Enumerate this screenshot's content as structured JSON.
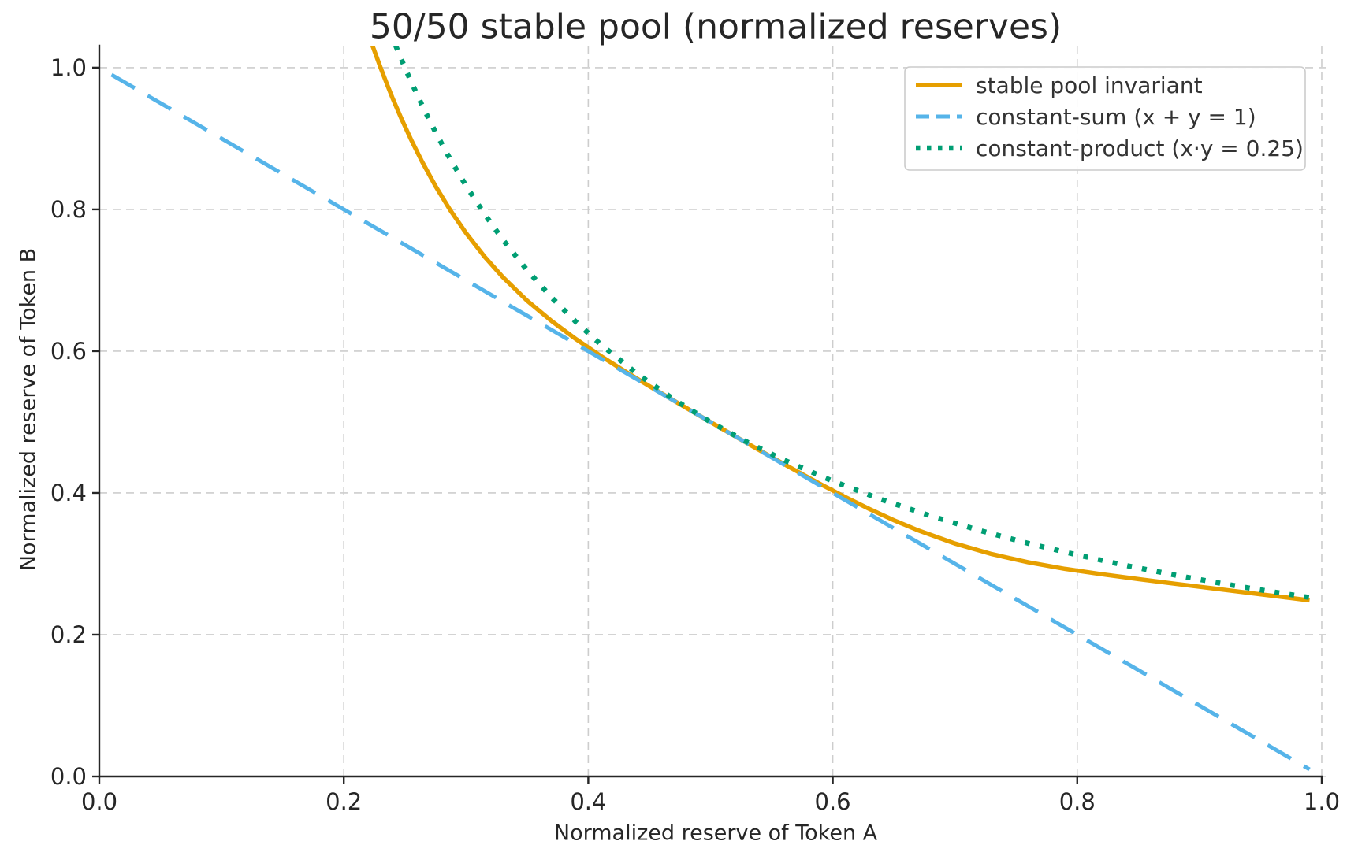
{
  "chart_data": {
    "type": "line",
    "title": "50/50 stable pool (normalized reserves)",
    "xlabel": "Normalized reserve of Token A",
    "ylabel": "Normalized reserve of Token B",
    "xlim": [
      0.0,
      1.0084
    ],
    "ylim": [
      0.0,
      1.031
    ],
    "grid": true,
    "grid_style": "dashed",
    "legend_position": "upper right",
    "xticks": {
      "values": [
        0.0,
        0.2,
        0.4,
        0.6,
        0.8,
        1.0
      ],
      "labels": [
        "0.0",
        "0.2",
        "0.4",
        "0.6",
        "0.8",
        "1.0"
      ]
    },
    "yticks": {
      "values": [
        0.0,
        0.2,
        0.4,
        0.6,
        0.8,
        1.0
      ],
      "labels": [
        "0.0",
        "0.2",
        "0.4",
        "0.6",
        "0.8",
        "1.0"
      ]
    },
    "colors": {
      "grid": "#cdcdcd",
      "spine": "#262626",
      "text": "#262626",
      "legend_border": "#cccccc",
      "background": "#ffffff"
    },
    "series": [
      {
        "name": "stable pool invariant",
        "color": "#E69F00",
        "style": "solid",
        "points": [
          [
            0.2235,
            1.031
          ],
          [
            0.227,
            1.0144
          ],
          [
            0.23,
            1.0005
          ],
          [
            0.235,
            0.9781
          ],
          [
            0.24,
            0.9567
          ],
          [
            0.247,
            0.9286
          ],
          [
            0.255,
            0.8986
          ],
          [
            0.264,
            0.8675
          ],
          [
            0.275,
            0.833
          ],
          [
            0.287,
            0.7992
          ],
          [
            0.3,
            0.7667
          ],
          [
            0.315,
            0.7336
          ],
          [
            0.33,
            0.7047
          ],
          [
            0.35,
            0.6713
          ],
          [
            0.37,
            0.6425
          ],
          [
            0.39,
            0.6169
          ],
          [
            0.41,
            0.5935
          ],
          [
            0.43,
            0.5716
          ],
          [
            0.45,
            0.5506
          ],
          [
            0.47,
            0.5302
          ],
          [
            0.5,
            0.5
          ],
          [
            0.53,
            0.4701
          ],
          [
            0.55,
            0.4505
          ],
          [
            0.57,
            0.4312
          ],
          [
            0.59,
            0.4124
          ],
          [
            0.61,
            0.3944
          ],
          [
            0.63,
            0.3773
          ],
          [
            0.65,
            0.3615
          ],
          [
            0.67,
            0.3471
          ],
          [
            0.7,
            0.3286
          ],
          [
            0.73,
            0.3137
          ],
          [
            0.76,
            0.3021
          ],
          [
            0.79,
            0.2929
          ],
          [
            0.82,
            0.2853
          ],
          [
            0.85,
            0.2784
          ],
          [
            0.88,
            0.2719
          ],
          [
            0.91,
            0.2655
          ],
          [
            0.94,
            0.2591
          ],
          [
            0.97,
            0.2527
          ],
          [
            0.99,
            0.2484
          ]
        ]
      },
      {
        "name": "constant-sum (x + y = 1)",
        "color": "#56B4E9",
        "style": "dashed",
        "points": [
          [
            0.01,
            0.99
          ],
          [
            0.99,
            0.01
          ]
        ]
      },
      {
        "name": "constant-product (x·y = 0.25)",
        "color": "#009E73",
        "style": "dotted",
        "points": [
          [
            0.2425,
            1.031
          ],
          [
            0.245,
            1.0204
          ],
          [
            0.25,
            1.0
          ],
          [
            0.255,
            0.9804
          ],
          [
            0.265,
            0.9434
          ],
          [
            0.275,
            0.9091
          ],
          [
            0.285,
            0.8772
          ],
          [
            0.3,
            0.8333
          ],
          [
            0.315,
            0.7937
          ],
          [
            0.33,
            0.7576
          ],
          [
            0.35,
            0.7143
          ],
          [
            0.37,
            0.6757
          ],
          [
            0.39,
            0.641
          ],
          [
            0.41,
            0.6098
          ],
          [
            0.44,
            0.5682
          ],
          [
            0.47,
            0.5319
          ],
          [
            0.5,
            0.5
          ],
          [
            0.53,
            0.4717
          ],
          [
            0.56,
            0.4464
          ],
          [
            0.6,
            0.4167
          ],
          [
            0.64,
            0.3906
          ],
          [
            0.68,
            0.3676
          ],
          [
            0.72,
            0.3472
          ],
          [
            0.76,
            0.3289
          ],
          [
            0.8,
            0.3125
          ],
          [
            0.84,
            0.2976
          ],
          [
            0.88,
            0.2841
          ],
          [
            0.92,
            0.2717
          ],
          [
            0.96,
            0.2604
          ],
          [
            0.99,
            0.2525
          ]
        ]
      }
    ]
  }
}
